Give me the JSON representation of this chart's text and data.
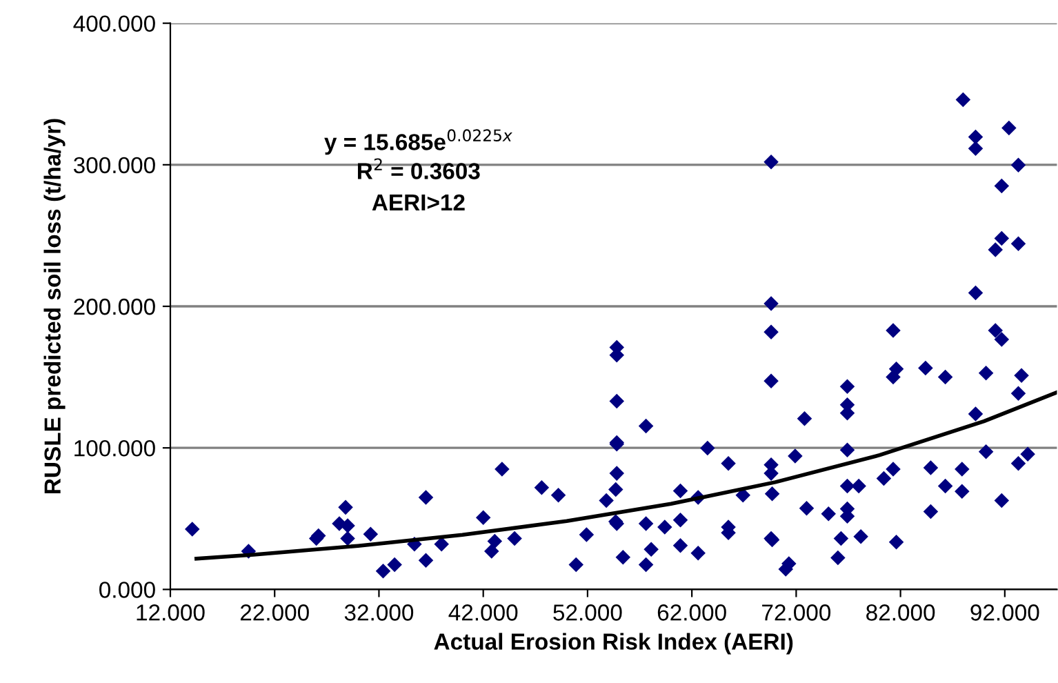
{
  "chart_data": {
    "type": "scatter",
    "xlabel": "Actual Erosion Risk Index (AERI)",
    "ylabel": "RUSLE predicted soil loss (t/ha/yr)",
    "annotations": [
      "y = 15.685e$^{0.0225x}$",
      "R$^{2}$ = 0.3603",
      "AERI>12"
    ],
    "xlim": [
      12,
      97
    ],
    "ylim": [
      0,
      400
    ],
    "xticks": [
      {
        "value": 12,
        "label": "12.000"
      },
      {
        "value": 22,
        "label": "22.000"
      },
      {
        "value": 32,
        "label": "32.000"
      },
      {
        "value": 42,
        "label": "42.000"
      },
      {
        "value": 52,
        "label": "52.000"
      },
      {
        "value": 62,
        "label": "62.000"
      },
      {
        "value": 72,
        "label": "72.000"
      },
      {
        "value": 82,
        "label": "82.000"
      },
      {
        "value": 92,
        "label": "92.000"
      }
    ],
    "yticks": [
      {
        "value": 0,
        "label": "0.000"
      },
      {
        "value": 100,
        "label": "100.000"
      },
      {
        "value": 200,
        "label": "200.000"
      },
      {
        "value": 300,
        "label": "300.000"
      },
      {
        "value": 400,
        "label": "400.000"
      }
    ],
    "grid": "y",
    "marker": "diamond",
    "series": [
      {
        "color": "#000080",
        "x": [
          14.1,
          19.5,
          26.0,
          26.2,
          28.8,
          28.2,
          29.0,
          29.0,
          31.2,
          32.4,
          33.5,
          35.4,
          36.5,
          36.5,
          38.0,
          42.0,
          43.1,
          42.8,
          43.8,
          45.0,
          47.6,
          49.2,
          50.9,
          51.9,
          53.8,
          54.7,
          54.8,
          54.8,
          54.8,
          54.8,
          54.8,
          54.8,
          54.7,
          54.8,
          55.4,
          57.6,
          57.6,
          57.6,
          58.1,
          59.4,
          60.9,
          60.9,
          60.9,
          62.6,
          62.6,
          63.5,
          65.5,
          65.5,
          65.5,
          66.9,
          69.6,
          69.6,
          69.6,
          69.6,
          69.6,
          69.6,
          69.7,
          69.6,
          69.7,
          71.0,
          71.3,
          71.9,
          72.8,
          73.0,
          75.1,
          76.3,
          76.0,
          76.9,
          76.9,
          76.9,
          76.9,
          76.9,
          76.9,
          76.9,
          78.0,
          78.2,
          80.4,
          81.3,
          81.3,
          81.6,
          81.3,
          81.6,
          84.4,
          84.9,
          84.9,
          86.3,
          86.3,
          87.9,
          87.9,
          89.2,
          89.2,
          90.2,
          90.2,
          91.1,
          91.7,
          91.7,
          91.1,
          91.7,
          93.3,
          93.3,
          93.6,
          93.3,
          94.2,
          88.0,
          89.2,
          89.2,
          92.4,
          93.3,
          91.7
        ],
        "values": [
          42.6,
          27,
          36,
          38,
          58,
          46.5,
          45,
          36,
          39,
          13,
          17.5,
          32,
          65,
          20.5,
          32,
          50.7,
          34,
          27,
          85,
          36,
          72,
          66.6,
          17.5,
          38.7,
          62.8,
          70.6,
          82,
          102.7,
          103.7,
          133,
          165.5,
          171,
          48,
          46.5,
          22.7,
          115.4,
          46.5,
          17.5,
          28.3,
          44,
          69.6,
          49,
          31,
          65,
          25.7,
          99.8,
          89,
          44,
          40,
          66.6,
          302,
          202,
          181.8,
          147.3,
          88,
          82,
          67.6,
          36,
          35,
          14.3,
          18.2,
          94.3,
          120.7,
          57.3,
          53.4,
          36,
          22.4,
          143.4,
          130.4,
          124.6,
          98.5,
          73,
          56.9,
          51.7,
          73,
          37.4,
          78.4,
          85,
          183,
          155.8,
          150,
          33.5,
          156.4,
          86,
          55,
          73,
          150,
          85,
          69.3,
          209.5,
          124,
          152.9,
          97.3,
          183,
          176.6,
          62.8,
          240,
          248,
          244.2,
          138.5,
          151.2,
          89,
          95.6,
          346,
          319.7,
          311.5,
          326,
          299.8,
          285
        ]
      },
      {
        "type": "line",
        "color": "#000000",
        "marker": "none",
        "line_style": "solid",
        "x": [
          14.5,
          20,
          30,
          40,
          50,
          60,
          70,
          80,
          90,
          97
        ],
        "values": [
          21.7,
          24.6,
          30.8,
          38.6,
          48.3,
          60.5,
          75.8,
          94.9,
          118.8,
          139.2
        ]
      }
    ]
  }
}
